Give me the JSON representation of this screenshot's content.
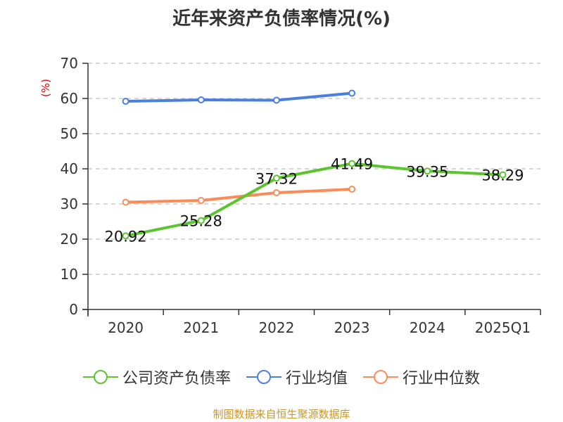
{
  "title": "近年来资产负债率情况(%)",
  "source": "制图数据来自恒生聚源数据库",
  "colors": {
    "company": "#5cc42e",
    "industry_avg": "#4a7fdc",
    "industry_median": "#fb8c5a",
    "unit_label": "#e60000",
    "source": "#c8962a"
  },
  "legend": [
    {
      "label": "公司资产负债率",
      "color": "#5cc42e"
    },
    {
      "label": "行业均值",
      "color": "#4a7fdc"
    },
    {
      "label": "行业中位数",
      "color": "#fb8c5a"
    }
  ],
  "chart_data": {
    "type": "line",
    "title": "近年来资产负债率情况(%)",
    "xlabel": "",
    "ylabel": "(%)",
    "categories": [
      "2020",
      "2021",
      "2022",
      "2023",
      "2024",
      "2025Q1"
    ],
    "ylim": [
      0,
      70
    ],
    "yticks": [
      0,
      10,
      20,
      30,
      40,
      50,
      60,
      70
    ],
    "grid": true,
    "legend_position": "bottom",
    "series": [
      {
        "name": "公司资产负债率",
        "values": [
          20.92,
          25.28,
          37.32,
          41.49,
          39.35,
          38.29
        ],
        "labels": [
          "20.92",
          "25.28",
          "37.32",
          "41.49",
          "39.35",
          "38.29"
        ]
      },
      {
        "name": "行业均值",
        "values": [
          59.2,
          59.6,
          59.5,
          61.5,
          null,
          null
        ]
      },
      {
        "name": "行业中位数",
        "values": [
          30.5,
          31.0,
          33.2,
          34.2,
          null,
          null
        ]
      }
    ]
  }
}
